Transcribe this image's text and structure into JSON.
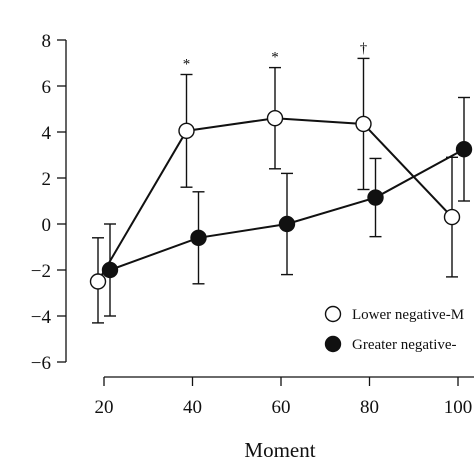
{
  "chart_data": {
    "type": "line",
    "xlabel": "Moment",
    "ylabel": "",
    "x_ticks": [
      20,
      40,
      60,
      80,
      100
    ],
    "y_ticks": [
      8,
      6,
      4,
      2,
      0,
      -2,
      -4,
      -6
    ],
    "ylim": [
      -6,
      8
    ],
    "grid": false,
    "legend_position": "bottom-right",
    "series": [
      {
        "name": "Lower negative-M",
        "marker": "open-circle",
        "color": "#ffffff",
        "x": [
          20,
          40,
          60,
          80,
          100
        ],
        "y": [
          -2.5,
          4.05,
          4.6,
          4.35,
          0.3
        ],
        "err_low": [
          -4.3,
          1.6,
          2.4,
          1.5,
          -2.3
        ],
        "err_high": [
          -0.6,
          6.5,
          6.8,
          7.2,
          2.9
        ]
      },
      {
        "name": "Greater negative-",
        "marker": "filled-circle",
        "color": "#111111",
        "x": [
          20,
          40,
          60,
          80,
          100
        ],
        "y": [
          -2.0,
          -0.6,
          0.0,
          1.15,
          3.25
        ],
        "err_low": [
          -4.0,
          -2.6,
          -2.2,
          -0.55,
          1.0
        ],
        "err_high": [
          0.0,
          1.4,
          2.2,
          2.85,
          5.5
        ]
      }
    ],
    "annotations": [
      {
        "x": 40,
        "text": "*"
      },
      {
        "x": 60,
        "text": "*"
      },
      {
        "x": 80,
        "text": "†"
      }
    ]
  }
}
